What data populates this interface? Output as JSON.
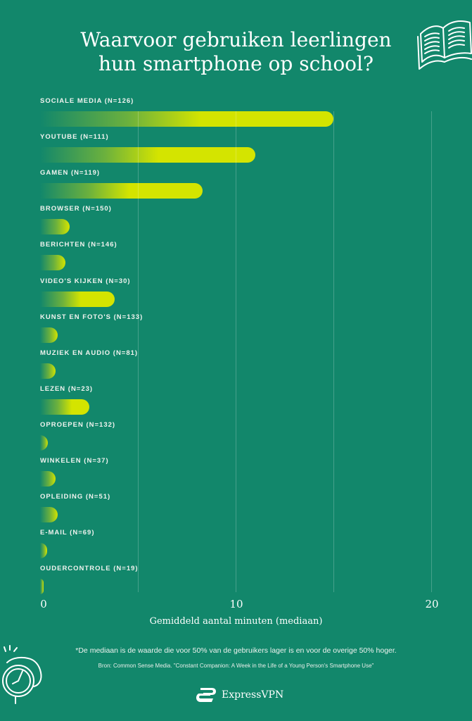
{
  "title_line1": "Waarvoor gebruiken leerlingen",
  "title_line2": "hun smartphone op school?",
  "icons": {
    "top_right": "open-book-icon",
    "bottom_left": "alarm-clock-icon",
    "logo": "expressvpn-logo-icon"
  },
  "colors": {
    "background": "#12876b",
    "bar_end": "#d4e400",
    "bar_start": "#12876b",
    "grid": "rgba(255,255,255,0.22)"
  },
  "chart_data": {
    "type": "bar",
    "orientation": "horizontal",
    "title": "Waarvoor gebruiken leerlingen hun smartphone op school?",
    "categories": [
      "SOCIALE MEDIA (N=126)",
      "YOUTUBE (N=111)",
      "GAMEN (N=119)",
      "BROWSER (N=150)",
      "BERICHTEN (N=146)",
      "VIDEO'S KIJKEN (N=30)",
      "KUNST EN FOTO'S (N=133)",
      "MUZIEK EN AUDIO (N=81)",
      "LEZEN (N=23)",
      "OPROEPEN (N=132)",
      "WINKELEN (N=37)",
      "OPLEIDING (N=51)",
      "E-MAIL (N=69)",
      "OUDERCONTROLE (N=19)"
    ],
    "values": [
      15,
      11,
      8.3,
      1.5,
      1.3,
      3.8,
      0.9,
      0.8,
      2.5,
      0.4,
      0.8,
      0.9,
      0.35,
      0.15
    ],
    "xlabel": "Gemiddeld aantal minuten (mediaan)",
    "ylabel": "",
    "xlim": [
      0,
      20
    ],
    "xticks": [
      "0",
      "10",
      "20"
    ],
    "grid": true,
    "gridlines_at": [
      5,
      10,
      15,
      20
    ]
  },
  "footnote": "*De mediaan is de waarde die voor 50% van de gebruikers lager is en voor de overige 50% hoger.",
  "source": "Bron: Common Sense Media. \"Constant Companion: A Week in the Life of a Young Person's Smartphone Use\"",
  "brand": "ExpressVPN"
}
